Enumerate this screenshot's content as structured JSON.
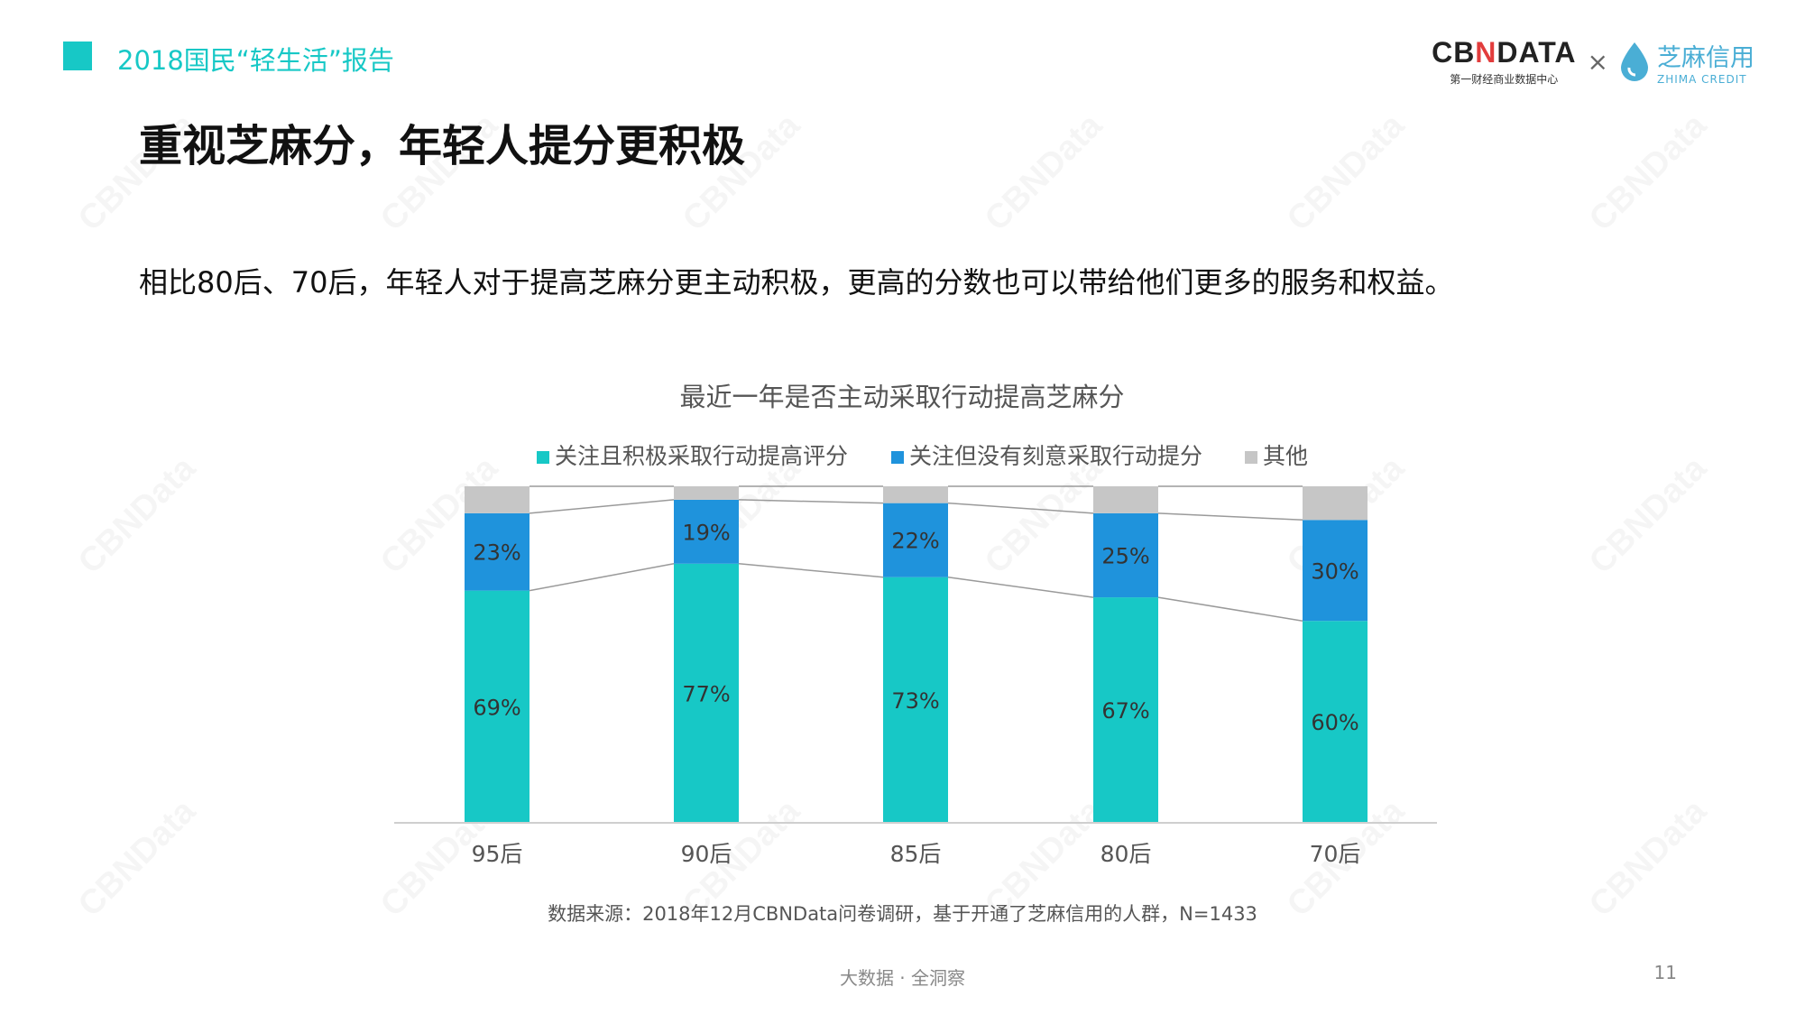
{
  "header": {
    "report_title": "2018国民“轻生活”报告"
  },
  "logo": {
    "cbn_main": "CBNDATA",
    "cbn_sub": "第一财经商业数据中心",
    "times": "×",
    "zhima_cn": "芝麻信用",
    "zhima_en": "ZHIMA CREDIT"
  },
  "page": {
    "title": "重视芝麻分，年轻人提分更积极",
    "subtitle": "相比80后、70后，年轻人对于提高芝麻分更主动积极，更高的分数也可以带给他们更多的服务和权益。",
    "source": "数据来源：2018年12月CBNData问卷调研，基于开通了芝麻信用的人群，N=1433",
    "footer": "大数据 · 全洞察",
    "page_number": "11",
    "watermark": "CBNData"
  },
  "chart_data": {
    "type": "bar",
    "stacked": true,
    "title": "最近一年是否主动采取行动提高芝麻分",
    "categories": [
      "95后",
      "90后",
      "85后",
      "80后",
      "70后"
    ],
    "series": [
      {
        "name": "关注且积极采取行动提高评分",
        "values": [
          69,
          77,
          73,
          67,
          60
        ],
        "labels": [
          "69%",
          "77%",
          "73%",
          "67%",
          "60%"
        ],
        "color": "#17c8c6"
      },
      {
        "name": "关注但没有刻意采取行动提分",
        "values": [
          23,
          19,
          22,
          25,
          30
        ],
        "labels": [
          "23%",
          "19%",
          "22%",
          "25%",
          "30%"
        ],
        "color": "#1f93dc"
      },
      {
        "name": "其他",
        "values": [
          8,
          4,
          5,
          8,
          10
        ],
        "color": "#c6c6c6"
      }
    ],
    "ylim": [
      0,
      100
    ],
    "legend_position": "top",
    "grid": false,
    "connector_lines": true
  }
}
